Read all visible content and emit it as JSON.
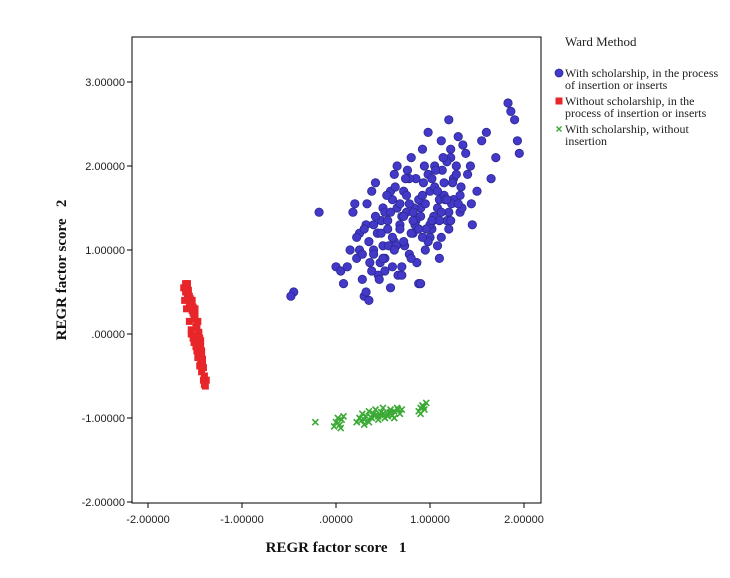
{
  "chart_data": {
    "type": "scatter",
    "title": "",
    "xlabel": "REGR factor score   1",
    "ylabel": "REGR factor score   2",
    "xlim": [
      -2.2,
      2.2
    ],
    "ylim": [
      -2.0,
      3.5
    ],
    "x_ticks": [
      -2,
      -1,
      0,
      1,
      2
    ],
    "x_tick_labels": [
      "-2.00000",
      "-1.00000",
      ".00000",
      "1.00000",
      "2.00000"
    ],
    "y_ticks": [
      -2,
      -1,
      0,
      1,
      2,
      3
    ],
    "y_tick_labels": [
      "-2.00000",
      "-1.00000",
      ".00000",
      "1.00000",
      "2.00000",
      "3.00000"
    ],
    "grid": false,
    "legend_title": "Ward Method",
    "legend_position": "right",
    "series": [
      {
        "name": "With scholarship, in the process of insertion or inserts",
        "marker": "circle",
        "color": "#4338c8",
        "edge_color": "#2a2a90",
        "x": [
          -0.45,
          -0.48,
          -0.18,
          0.0,
          0.05,
          0.08,
          0.12,
          0.15,
          0.18,
          0.2,
          0.22,
          0.25,
          0.28,
          0.3,
          0.32,
          0.35,
          0.38,
          0.4,
          0.42,
          0.45,
          0.48,
          0.5,
          0.52,
          0.55,
          0.58,
          0.6,
          0.62,
          0.65,
          0.68,
          0.7,
          0.72,
          0.75,
          0.78,
          0.8,
          0.82,
          0.85,
          0.88,
          0.9,
          0.92,
          0.95,
          0.98,
          1.0,
          1.02,
          1.05,
          1.08,
          1.1,
          1.12,
          1.15,
          1.18,
          1.2,
          1.22,
          1.25,
          1.28,
          1.3,
          1.32,
          1.35,
          1.4,
          1.45,
          1.5,
          1.55,
          1.6,
          1.65,
          1.7,
          1.83,
          1.86,
          1.9,
          1.93,
          1.95,
          0.35,
          0.4,
          0.45,
          0.55,
          0.6,
          0.7,
          0.8,
          0.9,
          1.0,
          1.1,
          1.2,
          0.3,
          0.5,
          0.65,
          0.75,
          0.85,
          0.95,
          1.05,
          1.15,
          1.25,
          0.25,
          0.42,
          0.58,
          0.68,
          0.78,
          0.88,
          0.98,
          1.08,
          1.18,
          1.28,
          1.38,
          0.22,
          0.33,
          0.47,
          0.63,
          0.73,
          0.83,
          0.93,
          1.03,
          1.13,
          1.23,
          1.33,
          1.43,
          0.28,
          0.38,
          0.52,
          0.62,
          0.72,
          0.82,
          0.92,
          1.02,
          1.12,
          1.22,
          1.32,
          0.32,
          0.44,
          0.56,
          0.66,
          0.76,
          0.86,
          0.96,
          1.06,
          1.16,
          0.36,
          0.46,
          0.54,
          0.64,
          0.74,
          0.84,
          0.94,
          1.04,
          1.14,
          1.24,
          1.34,
          1.44,
          0.4,
          0.5,
          0.6,
          0.7,
          0.8,
          0.9,
          1.0,
          1.1,
          1.2,
          1.3,
          0.48,
          0.58,
          0.68,
          0.78,
          0.88,
          0.98,
          1.08,
          1.18,
          0.52,
          0.62,
          0.72,
          0.82,
          0.92,
          1.02,
          1.12,
          1.22
        ],
        "y": [
          0.5,
          0.45,
          1.45,
          0.8,
          0.75,
          0.6,
          0.8,
          1.0,
          1.45,
          1.55,
          0.9,
          1.2,
          0.65,
          0.45,
          1.3,
          0.4,
          1.7,
          1.0,
          1.8,
          0.7,
          1.35,
          1.5,
          0.9,
          1.25,
          0.55,
          1.6,
          1.1,
          2.0,
          1.3,
          0.8,
          1.7,
          1.45,
          0.95,
          2.1,
          1.2,
          1.85,
          0.6,
          1.4,
          2.2,
          1.0,
          2.4,
          1.7,
          1.25,
          2.0,
          1.5,
          0.9,
          2.3,
          1.8,
          1.35,
          2.55,
          2.1,
          1.6,
          2.0,
          2.35,
          1.45,
          2.25,
          1.9,
          1.3,
          1.7,
          2.3,
          2.4,
          1.85,
          2.1,
          2.75,
          2.65,
          2.55,
          2.3,
          2.15,
          1.1,
          0.95,
          1.2,
          1.35,
          1.15,
          1.4,
          1.2,
          1.5,
          1.3,
          1.6,
          1.45,
          1.25,
          1.05,
          1.5,
          1.65,
          1.35,
          1.55,
          1.75,
          1.65,
          1.85,
          1.0,
          1.4,
          1.7,
          1.55,
          1.85,
          1.6,
          1.9,
          1.7,
          2.05,
          1.9,
          2.15,
          1.15,
          1.55,
          0.85,
          1.75,
          1.05,
          1.5,
          1.8,
          1.35,
          1.95,
          1.55,
          1.75,
          2.0,
          0.95,
          0.75,
          1.45,
          1.9,
          1.1,
          1.45,
          1.65,
          1.85,
          1.45,
          2.2,
          1.65,
          0.5,
          1.2,
          1.05,
          0.7,
          1.95,
          0.85,
          1.25,
          1.95,
          1.6,
          0.85,
          0.65,
          1.65,
          1.05,
          1.85,
          1.3,
          2.0,
          1.4,
          2.1,
          1.8,
          1.5,
          1.55,
          1.3,
          0.9,
          0.8,
          0.7,
          0.9,
          0.6,
          1.15,
          1.35,
          1.25,
          1.55,
          1.2,
          1.45,
          1.25,
          1.55,
          1.25,
          1.1,
          1.05,
          1.6,
          0.75,
          1.0,
          1.4,
          1.35,
          1.15,
          1.35,
          1.15,
          1.35
        ]
      },
      {
        "name": "Without scholarship, in the process of insertion or inserts",
        "marker": "square",
        "color": "#e8262a",
        "x": [
          -1.62,
          -1.6,
          -1.58,
          -1.56,
          -1.55,
          -1.53,
          -1.52,
          -1.5,
          -1.5,
          -1.48,
          -1.47,
          -1.46,
          -1.45,
          -1.44,
          -1.43,
          -1.42,
          -1.41,
          -1.4,
          -1.6,
          -1.57,
          -1.55,
          -1.52,
          -1.5,
          -1.48,
          -1.46,
          -1.44,
          -1.58,
          -1.56,
          -1.53,
          -1.51,
          -1.49,
          -1.47,
          -1.45,
          -1.43,
          -1.42,
          -1.54,
          -1.52,
          -1.5,
          -1.48,
          -1.46,
          -1.44,
          -1.42,
          -1.41,
          -1.39,
          -1.61,
          -1.59,
          -1.56,
          -1.54,
          -1.51,
          -1.49,
          -1.47,
          -1.45,
          -1.43,
          -1.4,
          -1.38
        ],
        "y": [
          0.55,
          0.5,
          0.6,
          0.45,
          0.35,
          0.4,
          0.25,
          0.2,
          0.3,
          0.1,
          0.15,
          0.0,
          -0.05,
          -0.15,
          -0.2,
          -0.3,
          -0.4,
          -0.5,
          0.6,
          0.52,
          0.42,
          0.32,
          0.22,
          0.12,
          0.02,
          -0.08,
          0.48,
          0.38,
          0.28,
          0.18,
          0.08,
          -0.02,
          -0.12,
          -0.22,
          -0.35,
          0.05,
          -0.05,
          -0.1,
          -0.2,
          -0.25,
          -0.3,
          -0.4,
          -0.55,
          -0.62,
          0.4,
          0.3,
          0.15,
          0.0,
          -0.1,
          -0.15,
          -0.28,
          -0.38,
          -0.45,
          -0.6,
          -0.55
        ]
      },
      {
        "name": "With scholarship, without insertion",
        "marker": "x",
        "color": "#3aaa35",
        "x": [
          -0.22,
          -0.02,
          0.0,
          0.02,
          0.04,
          0.06,
          0.08,
          0.22,
          0.25,
          0.28,
          0.3,
          0.32,
          0.35,
          0.38,
          0.4,
          0.42,
          0.45,
          0.48,
          0.5,
          0.52,
          0.55,
          0.58,
          0.6,
          0.62,
          0.65,
          0.68,
          0.7,
          0.88,
          0.9,
          0.92,
          0.94,
          0.96,
          0.35,
          0.45,
          0.55,
          0.62,
          0.3,
          0.42,
          0.5,
          0.58,
          0.66,
          0.05,
          0.27,
          0.37,
          0.47,
          0.57,
          0.9,
          0.93
        ],
        "y": [
          -1.05,
          -1.1,
          -1.05,
          -1.0,
          -1.08,
          -1.02,
          -0.98,
          -1.05,
          -1.0,
          -0.95,
          -1.02,
          -0.98,
          -0.92,
          -1.0,
          -0.95,
          -0.9,
          -0.98,
          -0.93,
          -0.88,
          -1.0,
          -0.95,
          -0.9,
          -0.97,
          -0.92,
          -0.88,
          -0.95,
          -0.9,
          -0.92,
          -0.88,
          -0.85,
          -0.9,
          -0.82,
          -1.05,
          -1.02,
          -0.98,
          -1.0,
          -1.08,
          -0.97,
          -0.95,
          -0.93,
          -0.9,
          -1.12,
          -1.03,
          -0.99,
          -0.96,
          -0.94,
          -0.95,
          -0.87
        ]
      }
    ]
  }
}
